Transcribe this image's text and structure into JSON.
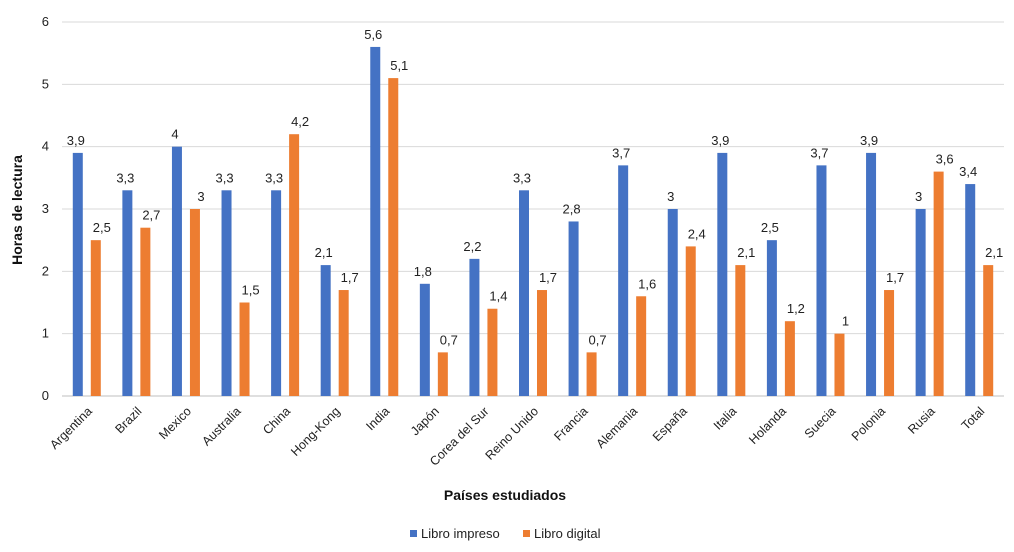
{
  "chart_data": {
    "type": "bar",
    "title": "",
    "xlabel": "Países estudiados",
    "ylabel": "Horas de lectura",
    "ylim": [
      0,
      6
    ],
    "yticks": [
      "0",
      "1",
      "2",
      "3",
      "4",
      "5",
      "6"
    ],
    "grid": true,
    "legend_position": "bottom",
    "categories": [
      "Argentina",
      "Brazil",
      "Mexico",
      "Australia",
      "China",
      "Hong-Kong",
      "India",
      "Japón",
      "Corea del Sur",
      "Reino Unido",
      "Francia",
      "Alemania",
      "España",
      "Italia",
      "Holanda",
      "Suecia",
      "Polonia",
      "Rusia",
      "Total"
    ],
    "series": [
      {
        "name": "Libro impreso",
        "color": "#4472C4",
        "values": [
          3.9,
          3.3,
          4,
          3.3,
          3.3,
          2.1,
          5.6,
          1.8,
          2.2,
          3.3,
          2.8,
          3.7,
          3,
          3.9,
          2.5,
          3.7,
          3.9,
          3,
          3.4
        ],
        "labels": [
          "3,9",
          "3,3",
          "4",
          "3,3",
          "3,3",
          "2,1",
          "5,6",
          "1,8",
          "2,2",
          "3,3",
          "2,8",
          "3,7",
          "3",
          "3,9",
          "2,5",
          "3,7",
          "3,9",
          "3",
          "3,4"
        ]
      },
      {
        "name": "Libro digital",
        "color": "#ED7D31",
        "values": [
          2.5,
          2.7,
          3,
          1.5,
          4.2,
          1.7,
          5.1,
          0.7,
          1.4,
          1.7,
          0.7,
          1.6,
          2.4,
          2.1,
          1.2,
          1,
          1.7,
          3.6,
          2.1
        ],
        "labels": [
          "2,5",
          "2,7",
          "3",
          "1,5",
          "4,2",
          "1,7",
          "5,1",
          "0,7",
          "1,4",
          "1,7",
          "0,7",
          "1,6",
          "2,4",
          "2,1",
          "1,2",
          "1",
          "1,7",
          "3,6",
          "2,1"
        ]
      }
    ]
  }
}
